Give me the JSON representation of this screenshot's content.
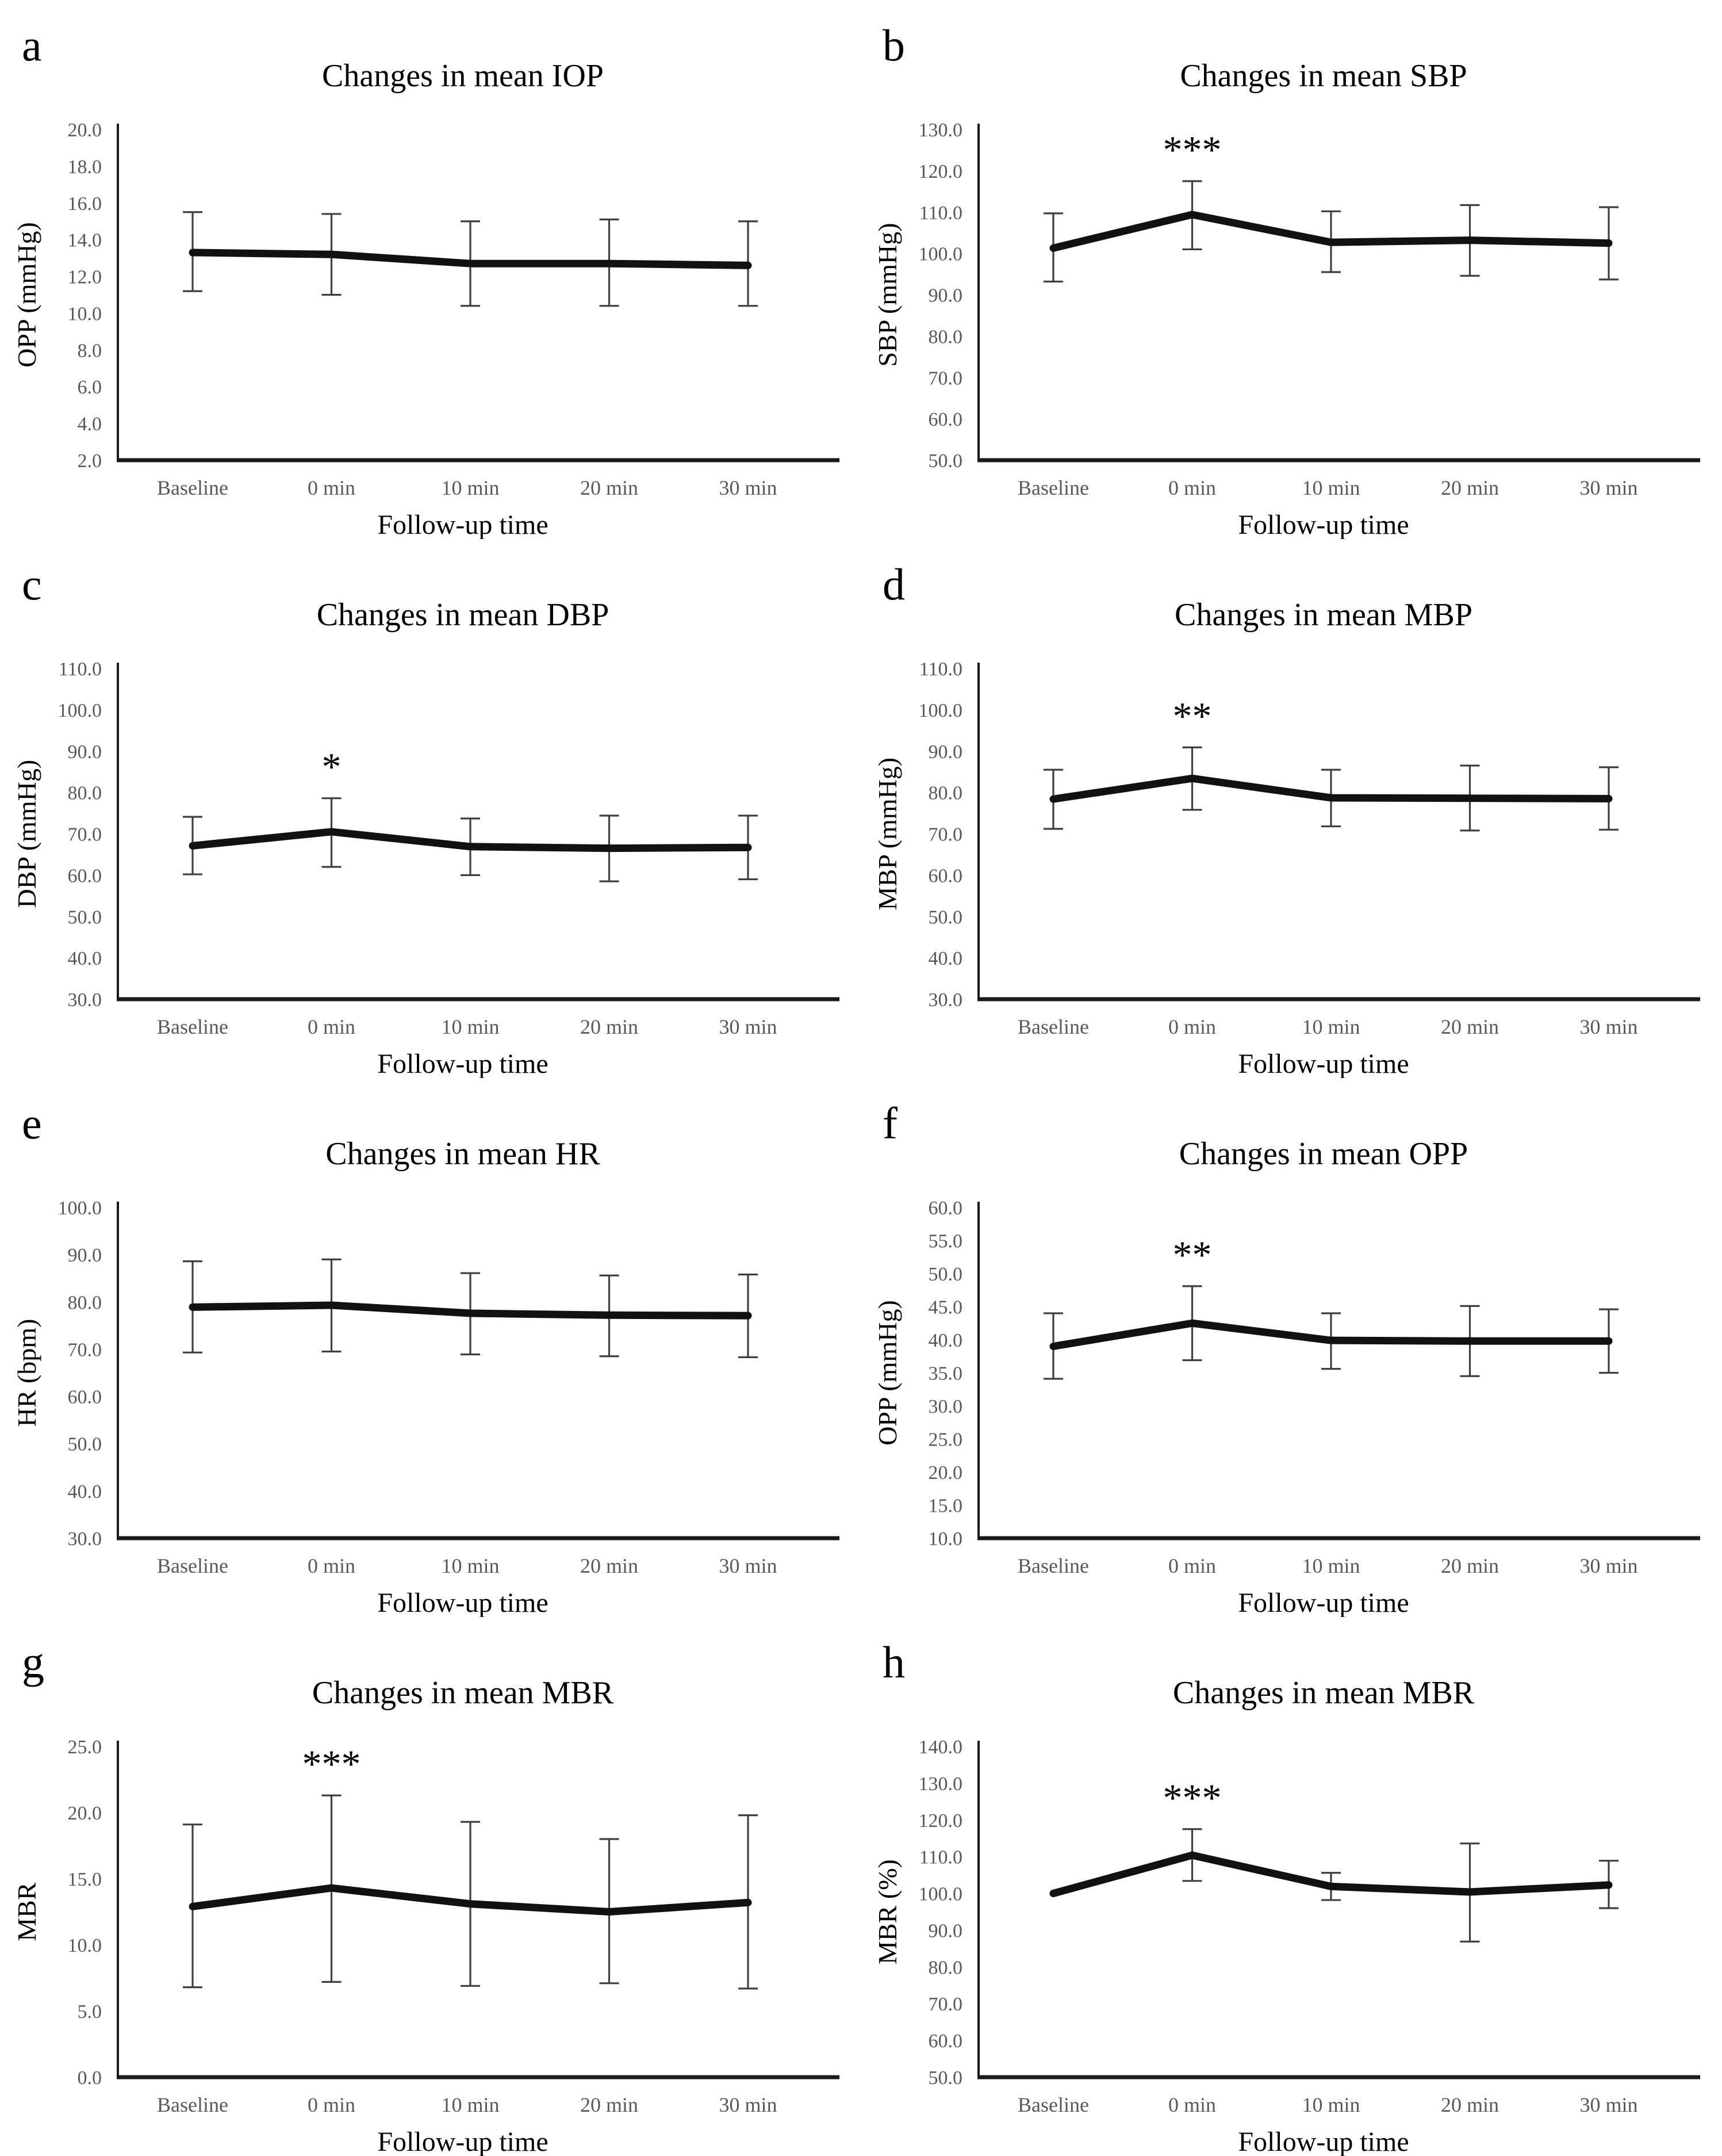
{
  "figure": {
    "description_labels": {
      "x_axis_title": "Follow-up time"
    }
  },
  "colors": {
    "background": "#ffffff",
    "text_primary": "#000000",
    "text_secondary": "#595959",
    "data_line": "#111111",
    "error_bar": "#3f3f3f",
    "axis_line": "#1a1a1a"
  },
  "chart_data": [
    {
      "id": "a",
      "type": "line",
      "title": "Changes in mean IOP",
      "xlabel": "Follow-up time",
      "ylabel": "OPP (mmHg)",
      "categories": [
        "Baseline",
        "0 min",
        "10 min",
        "20 min",
        "30 min"
      ],
      "ylim": [
        2.0,
        20.0
      ],
      "ystep": 2.0,
      "values": [
        13.3,
        13.2,
        12.7,
        12.7,
        12.6
      ],
      "err_low": [
        11.2,
        11.0,
        10.4,
        10.4,
        10.4
      ],
      "err_high": [
        15.5,
        15.4,
        15.0,
        15.1,
        15.0
      ],
      "significance": null,
      "grid": false,
      "legend": null
    },
    {
      "id": "b",
      "type": "line",
      "title": "Changes in mean SBP",
      "xlabel": "Follow-up time",
      "ylabel": "SBP (mmHg)",
      "categories": [
        "Baseline",
        "0 min",
        "10 min",
        "20 min",
        "30 min"
      ],
      "ylim": [
        50.0,
        130.0
      ],
      "ystep": 10.0,
      "values": [
        101.3,
        109.4,
        102.7,
        103.2,
        102.5
      ],
      "err_low": [
        93.2,
        101.0,
        95.5,
        94.6,
        93.7
      ],
      "err_high": [
        109.7,
        117.5,
        110.2,
        111.7,
        111.2
      ],
      "significance": {
        "label": "***",
        "category_index": 1
      },
      "grid": false,
      "legend": null
    },
    {
      "id": "c",
      "type": "line",
      "title": "Changes in mean DBP",
      "xlabel": "Follow-up time",
      "ylabel": "DBP (mmHg)",
      "categories": [
        "Baseline",
        "0 min",
        "10 min",
        "20 min",
        "30 min"
      ],
      "ylim": [
        30.0,
        110.0
      ],
      "ystep": 10.0,
      "values": [
        67.1,
        70.5,
        66.9,
        66.5,
        66.7
      ],
      "err_low": [
        60.2,
        62.0,
        60.0,
        58.5,
        59.0
      ],
      "err_high": [
        74.1,
        78.6,
        73.7,
        74.4,
        74.4
      ],
      "significance": {
        "label": "*",
        "category_index": 1
      },
      "grid": false,
      "legend": null
    },
    {
      "id": "d",
      "type": "line",
      "title": "Changes in mean MBP",
      "xlabel": "Follow-up time",
      "ylabel": "MBP (mmHg)",
      "categories": [
        "Baseline",
        "0 min",
        "10 min",
        "20 min",
        "30 min"
      ],
      "ylim": [
        30.0,
        110.0
      ],
      "ystep": 10.0,
      "values": [
        78.4,
        83.4,
        78.7,
        78.6,
        78.5
      ],
      "err_low": [
        71.2,
        75.8,
        71.8,
        70.8,
        71.0
      ],
      "err_high": [
        85.5,
        90.9,
        85.5,
        86.5,
        86.1
      ],
      "significance": {
        "label": "**",
        "category_index": 1
      },
      "grid": false,
      "legend": null
    },
    {
      "id": "e",
      "type": "line",
      "title": "Changes in mean HR",
      "xlabel": "Follow-up time",
      "ylabel": "HR (bpm)",
      "categories": [
        "Baseline",
        "0 min",
        "10 min",
        "20 min",
        "30 min"
      ],
      "ylim": [
        30.0,
        100.0
      ],
      "ystep": 10.0,
      "values": [
        78.9,
        79.3,
        77.6,
        77.2,
        77.1
      ],
      "err_low": [
        69.3,
        69.5,
        68.9,
        68.5,
        68.3
      ],
      "err_high": [
        88.6,
        89.0,
        86.1,
        85.6,
        85.8
      ],
      "significance": null,
      "grid": false,
      "legend": null
    },
    {
      "id": "f",
      "type": "line",
      "title": "Changes in mean OPP",
      "xlabel": "Follow-up time",
      "ylabel": "OPP (mmHg)",
      "categories": [
        "Baseline",
        "0 min",
        "10 min",
        "20 min",
        "30 min"
      ],
      "ylim": [
        10.0,
        60.0
      ],
      "ystep": 5.0,
      "values": [
        39.0,
        42.5,
        39.9,
        39.8,
        39.8
      ],
      "err_low": [
        34.1,
        36.9,
        35.6,
        34.5,
        35.0
      ],
      "err_high": [
        44.0,
        48.1,
        44.0,
        45.1,
        44.6
      ],
      "significance": {
        "label": "**",
        "category_index": 1
      },
      "grid": false,
      "legend": null
    },
    {
      "id": "g",
      "type": "line",
      "title": "Changes in mean MBR",
      "xlabel": "Follow-up time",
      "ylabel": "MBR",
      "categories": [
        "Baseline",
        "0 min",
        "10 min",
        "20 min",
        "30 min"
      ],
      "ylim": [
        0.0,
        25.0
      ],
      "ystep": 5.0,
      "values": [
        12.9,
        14.3,
        13.1,
        12.5,
        13.2
      ],
      "err_low": [
        6.8,
        7.2,
        6.9,
        7.1,
        6.7
      ],
      "err_high": [
        19.1,
        21.3,
        19.3,
        18.0,
        19.8
      ],
      "significance": {
        "label": "***",
        "category_index": 1
      },
      "grid": false,
      "legend": null
    },
    {
      "id": "h",
      "type": "line",
      "title": "Changes in mean MBR",
      "xlabel": "Follow-up time",
      "ylabel": "MBR (%)",
      "categories": [
        "Baseline",
        "0 min",
        "10 min",
        "20 min",
        "30 min"
      ],
      "ylim": [
        50.0,
        140.0
      ],
      "ystep": 10.0,
      "values": [
        100.0,
        110.4,
        101.9,
        100.4,
        102.3
      ],
      "err_low": [
        null,
        103.4,
        98.2,
        86.9,
        96.0
      ],
      "err_high": [
        null,
        117.5,
        105.6,
        113.6,
        108.9
      ],
      "significance": {
        "label": "***",
        "category_index": 1
      },
      "grid": false,
      "legend": null
    }
  ]
}
